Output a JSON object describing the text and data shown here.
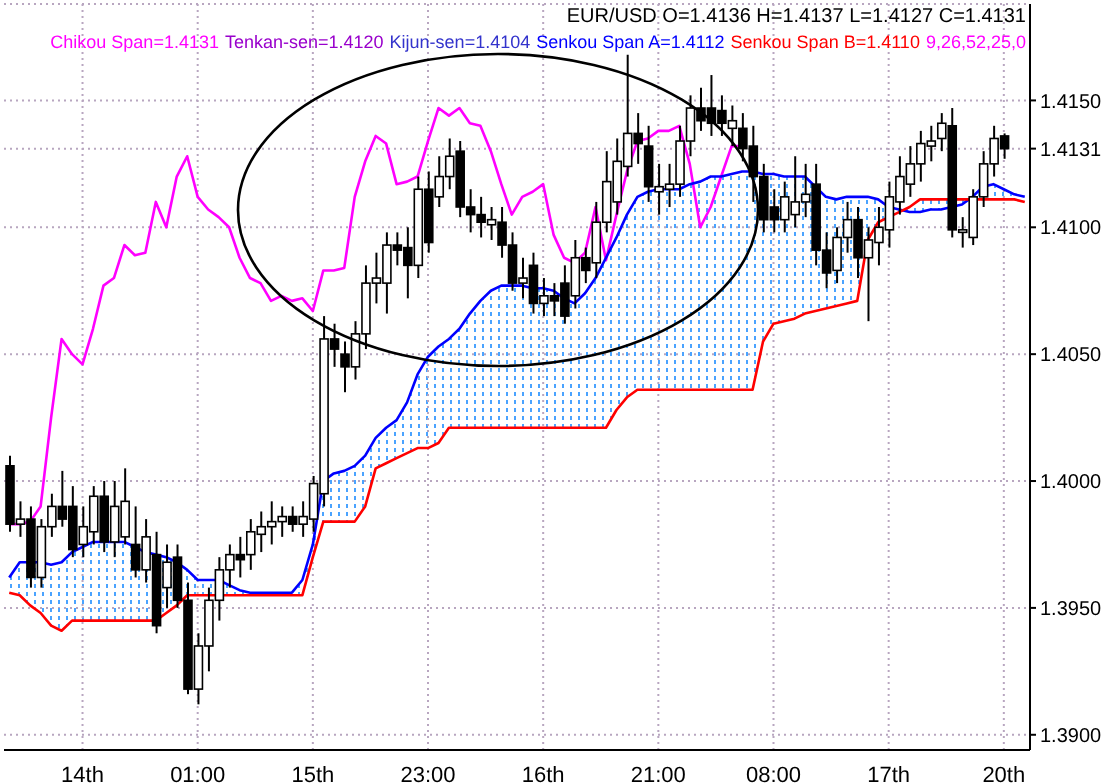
{
  "chart_data": {
    "type": "candlestick",
    "title": "EUR/USD O=1.4136 H=1.4137 L=1.4127 C=1.4131",
    "annotations": [
      "Chikou Span=1.4131",
      "Tenkan-sen=1.4120",
      "Kijun-sen=1.4104",
      "Senkou Span A=1.4112",
      "Senkou Span B=1.4110",
      "9,26,52,25,0"
    ],
    "categories": [
      null,
      null,
      null,
      null,
      null,
      null,
      null,
      "14th",
      null,
      null,
      null,
      null,
      null,
      null,
      null,
      null,
      null,
      null,
      "01:00",
      null,
      null,
      null,
      null,
      null,
      null,
      null,
      null,
      null,
      null,
      "15th",
      null,
      null,
      null,
      null,
      null,
      null,
      null,
      null,
      null,
      null,
      "23:00",
      null,
      null,
      null,
      null,
      null,
      null,
      null,
      null,
      null,
      null,
      "16th",
      null,
      null,
      null,
      null,
      null,
      null,
      null,
      null,
      null,
      null,
      "21:00",
      null,
      null,
      null,
      null,
      null,
      null,
      null,
      null,
      null,
      null,
      "08:00",
      null,
      null,
      null,
      null,
      null,
      null,
      null,
      null,
      null,
      null,
      "17th",
      null,
      null,
      null,
      null,
      null,
      null,
      null,
      null,
      null,
      null,
      "20th",
      null,
      null
    ],
    "ohlc": [
      [
        1.4006,
        1.401,
        1.398,
        1.3983
      ],
      [
        1.3983,
        1.3992,
        1.3978,
        1.3985
      ],
      [
        1.3985,
        1.399,
        1.3958,
        1.3962
      ],
      [
        1.3962,
        1.3985,
        1.3958,
        1.3982
      ],
      [
        1.3982,
        1.3995,
        1.3978,
        1.399
      ],
      [
        1.399,
        1.4004,
        1.3982,
        1.3985
      ],
      [
        1.399,
        1.3998,
        1.397,
        1.3973
      ],
      [
        1.3975,
        1.399,
        1.397,
        1.3982
      ],
      [
        1.398,
        1.3998,
        1.3975,
        1.3994
      ],
      [
        1.3994,
        1.4,
        1.3972,
        1.3976
      ],
      [
        1.3976,
        1.4,
        1.397,
        1.399
      ],
      [
        1.3978,
        1.4005,
        1.3975,
        1.3992
      ],
      [
        1.3975,
        1.399,
        1.3962,
        1.3965
      ],
      [
        1.3965,
        1.3985,
        1.396,
        1.3978
      ],
      [
        1.3971,
        1.398,
        1.394,
        1.3943
      ],
      [
        1.3958,
        1.3975,
        1.395,
        1.3968
      ],
      [
        1.397,
        1.3975,
        1.395,
        1.3953
      ],
      [
        1.3953,
        1.396,
        1.3916,
        1.3918
      ],
      [
        1.3918,
        1.394,
        1.3912,
        1.3935
      ],
      [
        1.3935,
        1.3958,
        1.3925,
        1.3953
      ],
      [
        1.3953,
        1.397,
        1.3945,
        1.3965
      ],
      [
        1.3965,
        1.3975,
        1.3958,
        1.3971
      ],
      [
        1.3971,
        1.3978,
        1.3962,
        1.3969
      ],
      [
        1.3971,
        1.3985,
        1.3965,
        1.398
      ],
      [
        1.3979,
        1.3988,
        1.3972,
        1.3982
      ],
      [
        1.3982,
        1.3992,
        1.3975,
        1.3984
      ],
      [
        1.3984,
        1.399,
        1.3978,
        1.3986
      ],
      [
        1.3986,
        1.399,
        1.398,
        1.3983
      ],
      [
        1.3983,
        1.3992,
        1.3978,
        1.3986
      ],
      [
        1.3985,
        1.4002,
        1.398,
        1.3999
      ],
      [
        1.3995,
        1.4065,
        1.399,
        1.4056
      ],
      [
        1.4056,
        1.4062,
        1.4045,
        1.4052
      ],
      [
        1.405,
        1.4055,
        1.4035,
        1.4045
      ],
      [
        1.4045,
        1.4063,
        1.404,
        1.4058
      ],
      [
        1.4058,
        1.4085,
        1.4052,
        1.4078
      ],
      [
        1.4078,
        1.409,
        1.407,
        1.408
      ],
      [
        1.4078,
        1.4098,
        1.4066,
        1.4093
      ],
      [
        1.4093,
        1.4098,
        1.4085,
        1.4091
      ],
      [
        1.4092,
        1.41,
        1.4072,
        1.4085
      ],
      [
        1.4085,
        1.412,
        1.408,
        1.4115
      ],
      [
        1.4115,
        1.4122,
        1.409,
        1.4094
      ],
      [
        1.4112,
        1.4128,
        1.4108,
        1.412
      ],
      [
        1.412,
        1.4135,
        1.4115,
        1.4128
      ],
      [
        1.413,
        1.4134,
        1.4104,
        1.4108
      ],
      [
        1.4108,
        1.4115,
        1.4098,
        1.4105
      ],
      [
        1.4105,
        1.4112,
        1.4096,
        1.4102
      ],
      [
        1.4101,
        1.4108,
        1.4095,
        1.4103
      ],
      [
        1.4102,
        1.4108,
        1.4088,
        1.4093
      ],
      [
        1.4093,
        1.4098,
        1.4075,
        1.4078
      ],
      [
        1.4078,
        1.4088,
        1.4072,
        1.408
      ],
      [
        1.4085,
        1.409,
        1.4066,
        1.407
      ],
      [
        1.407,
        1.408,
        1.4065,
        1.4073
      ],
      [
        1.4073,
        1.4078,
        1.4065,
        1.4071
      ],
      [
        1.4078,
        1.4085,
        1.4062,
        1.4065
      ],
      [
        1.4073,
        1.4095,
        1.4068,
        1.4088
      ],
      [
        1.4088,
        1.4092,
        1.4078,
        1.4083
      ],
      [
        1.4086,
        1.411,
        1.408,
        1.4102
      ],
      [
        1.4102,
        1.413,
        1.4098,
        1.4118
      ],
      [
        1.411,
        1.4135,
        1.4105,
        1.4126
      ],
      [
        1.4124,
        1.4168,
        1.412,
        1.4137
      ],
      [
        1.4137,
        1.4145,
        1.4125,
        1.4133
      ],
      [
        1.4132,
        1.414,
        1.411,
        1.4116
      ],
      [
        1.4114,
        1.4125,
        1.4105,
        1.4116
      ],
      [
        1.4115,
        1.4125,
        1.4108,
        1.4117
      ],
      [
        1.4117,
        1.414,
        1.4112,
        1.4134
      ],
      [
        1.4134,
        1.4152,
        1.4128,
        1.4147
      ],
      [
        1.4147,
        1.4155,
        1.4138,
        1.4142
      ],
      [
        1.4147,
        1.416,
        1.4136,
        1.4141
      ],
      [
        1.4146,
        1.4152,
        1.4136,
        1.4141
      ],
      [
        1.4139,
        1.4148,
        1.4132,
        1.4142
      ],
      [
        1.4139,
        1.4145,
        1.4126,
        1.4131
      ],
      [
        1.4132,
        1.414,
        1.411,
        1.412
      ],
      [
        1.412,
        1.4125,
        1.4098,
        1.4103
      ],
      [
        1.4108,
        1.4115,
        1.4098,
        1.4103
      ],
      [
        1.4103,
        1.4118,
        1.4098,
        1.4112
      ],
      [
        1.4105,
        1.4128,
        1.41,
        1.411
      ],
      [
        1.411,
        1.4125,
        1.4104,
        1.4113
      ],
      [
        1.4117,
        1.4125,
        1.4085,
        1.4091
      ],
      [
        1.4091,
        1.4098,
        1.4076,
        1.4082
      ],
      [
        1.4083,
        1.41,
        1.4078,
        1.4096
      ],
      [
        1.4096,
        1.411,
        1.409,
        1.4103
      ],
      [
        1.4103,
        1.4108,
        1.408,
        1.4088
      ],
      [
        1.4088,
        1.41,
        1.4063,
        1.4095
      ],
      [
        1.4094,
        1.4108,
        1.4085,
        1.41
      ],
      [
        1.4099,
        1.4118,
        1.4092,
        1.4112
      ],
      [
        1.411,
        1.4128,
        1.4105,
        1.412
      ],
      [
        1.4117,
        1.4132,
        1.4112,
        1.4125
      ],
      [
        1.4125,
        1.4138,
        1.4118,
        1.4133
      ],
      [
        1.4132,
        1.414,
        1.4126,
        1.4134
      ],
      [
        1.4135,
        1.4145,
        1.413,
        1.4141
      ],
      [
        1.414,
        1.4147,
        1.4096,
        1.4099
      ],
      [
        1.4098,
        1.4104,
        1.4092,
        1.4099
      ],
      [
        1.4096,
        1.4115,
        1.4093,
        1.4112
      ],
      [
        1.4112,
        1.413,
        1.4108,
        1.4125
      ],
      [
        1.4125,
        1.414,
        1.412,
        1.4135
      ],
      [
        1.4136,
        1.4137,
        1.4127,
        1.4131
      ],
      null,
      null
    ],
    "series": [
      {
        "type": "line",
        "color": "#ff00ff",
        "values": [
          1.3983,
          1.3983,
          1.3984,
          1.399,
          1.4025,
          1.4056,
          1.405,
          1.4046,
          1.406,
          1.4077,
          1.408,
          1.4093,
          1.4089,
          1.409,
          1.411,
          1.41,
          1.412,
          1.4128,
          1.4112,
          1.4107,
          1.4104,
          1.41,
          1.4088,
          1.408,
          1.4078,
          1.4071,
          1.4073,
          1.4071,
          1.4072,
          1.4067,
          1.4083,
          1.4083,
          1.4084,
          1.4112,
          1.4126,
          1.4136,
          1.4133,
          1.4117,
          1.4118,
          1.412,
          1.4134,
          1.4147,
          1.4144,
          1.4147,
          1.4141,
          1.414,
          1.413,
          1.4117,
          1.4105,
          1.4112,
          1.4114,
          1.4117,
          1.4097,
          1.4088,
          1.4086,
          1.409,
          1.4108,
          1.4087,
          1.4105,
          1.4122,
          1.4134,
          1.4135,
          1.4138,
          1.4138,
          1.414,
          1.4125,
          1.41,
          1.4108,
          1.412,
          1.4132,
          1.4132,
          null,
          null,
          null,
          null,
          null,
          null,
          null,
          null,
          null,
          null,
          null,
          null,
          null,
          null,
          null,
          null,
          null,
          null,
          null,
          null,
          null,
          null,
          null,
          null,
          null,
          null,
          null
        ]
      },
      {
        "type": "line",
        "color": "#0000ff",
        "lower": [
          1.3956,
          1.3955,
          1.3951,
          1.3948,
          1.3943,
          1.3941,
          1.3945,
          1.3945,
          1.3945,
          1.3945,
          1.3945,
          1.3945,
          1.3945,
          1.3945,
          1.3945,
          1.3948,
          1.3951,
          1.3955,
          1.3955,
          1.3955,
          1.3955,
          1.3955,
          1.3955,
          1.3955,
          1.3955,
          1.3955,
          1.3955,
          1.3955,
          1.3955,
          1.397,
          1.3984,
          1.3984,
          1.3984,
          1.3984,
          1.399,
          1.4005,
          1.4007,
          1.4009,
          1.4011,
          1.4013,
          1.4013,
          1.4015,
          1.4021,
          1.4021,
          1.4021,
          1.4021,
          1.4021,
          1.4021,
          1.4021,
          1.4021,
          1.4021,
          1.4021,
          1.4021,
          1.4021,
          1.4021,
          1.4021,
          1.4021,
          1.4021,
          1.4028,
          1.4033,
          1.4036,
          1.4036,
          1.4036,
          1.4036,
          1.4036,
          1.4036,
          1.4036,
          1.4036,
          1.4036,
          1.4036,
          1.4036,
          1.4036,
          1.4055,
          1.4062,
          1.4063,
          1.4064,
          1.4066,
          1.4067,
          1.4068,
          1.4069,
          1.407,
          1.4071,
          1.4095,
          1.4102,
          1.4104,
          1.4106,
          1.4108,
          1.4111,
          1.4111,
          1.4111,
          1.4111,
          1.4111,
          1.4111,
          1.4111,
          1.4111,
          1.4111,
          1.4111,
          1.411
        ],
        "upper": [
          1.3962,
          1.3968,
          1.3968,
          1.3968,
          1.3967,
          1.3968,
          1.3972,
          1.3974,
          1.3976,
          1.3976,
          1.3976,
          1.3976,
          1.3974,
          1.3972,
          1.3971,
          1.397,
          1.3968,
          1.3965,
          1.3961,
          1.3961,
          1.3961,
          1.3959,
          1.3957,
          1.3956,
          1.3956,
          1.3956,
          1.3956,
          1.3956,
          1.3961,
          1.3975,
          1.4,
          1.4003,
          1.4004,
          1.4006,
          1.401,
          1.4017,
          1.4021,
          1.4024,
          1.4031,
          1.4042,
          1.4049,
          1.4053,
          1.4056,
          1.406,
          1.4066,
          1.4071,
          1.4075,
          1.4077,
          1.4077,
          1.4077,
          1.4076,
          1.4076,
          1.4075,
          1.4072,
          1.407,
          1.4074,
          1.408,
          1.4088,
          1.4096,
          1.4105,
          1.4112,
          1.4114,
          1.4115,
          1.4115,
          1.4115,
          1.4117,
          1.4118,
          1.412,
          1.412,
          1.4121,
          1.4122,
          1.4122,
          1.4121,
          1.4121,
          1.412,
          1.412,
          1.412,
          1.4116,
          1.4112,
          1.4111,
          1.4112,
          1.4112,
          1.4112,
          1.4111,
          1.4108,
          1.4107,
          1.4106,
          1.4106,
          1.4107,
          1.4107,
          1.4108,
          1.4109,
          1.4112,
          1.4116,
          1.4117,
          1.4115,
          1.4113,
          1.4112
        ],
        "values": [
          1.3962,
          1.3968,
          1.3968,
          1.3968,
          1.3967,
          1.3968,
          1.3972,
          1.3974,
          1.3976,
          1.3976,
          1.3976,
          1.3976,
          1.3974,
          1.3972,
          1.3971,
          1.397,
          1.3968,
          1.3965,
          1.3961,
          1.3961,
          1.3961,
          1.3959,
          1.3957,
          1.3956,
          1.3956,
          1.3956,
          1.3956,
          1.3956,
          1.3961,
          1.3975,
          1.4,
          1.4003,
          1.4004,
          1.4006,
          1.401,
          1.4017,
          1.4021,
          1.4024,
          1.4031,
          1.4042,
          1.4049,
          1.4053,
          1.4056,
          1.406,
          1.4066,
          1.4071,
          1.4075,
          1.4077,
          1.4077,
          1.4077,
          1.4076,
          1.4076,
          1.4075,
          1.4072,
          1.407,
          1.4074,
          1.408,
          1.4088,
          1.4096,
          1.4105,
          1.4112,
          1.4114,
          1.4115,
          1.4115,
          1.4115,
          1.4117,
          1.4118,
          1.412,
          1.412,
          1.4121,
          1.4122,
          1.4122,
          1.4121,
          1.4121,
          1.412,
          1.412,
          1.412,
          1.4116,
          1.4112,
          1.4111,
          1.4112,
          1.4112,
          1.4112,
          1.4111,
          1.4108,
          1.4107,
          1.4106,
          1.4106,
          1.4107,
          1.4107,
          1.4108,
          1.4109,
          1.4112,
          1.4116,
          1.4117,
          1.4115,
          1.4113,
          1.4112
        ]
      },
      {
        "type": "line",
        "color": "#ff0000",
        "values": [
          1.3956,
          1.3955,
          1.3951,
          1.3948,
          1.3943,
          1.3941,
          1.3945,
          1.3945,
          1.3945,
          1.3945,
          1.3945,
          1.3945,
          1.3945,
          1.3945,
          1.3945,
          1.3948,
          1.3951,
          1.3955,
          1.3955,
          1.3955,
          1.3955,
          1.3955,
          1.3955,
          1.3955,
          1.3955,
          1.3955,
          1.3955,
          1.3955,
          1.3955,
          1.397,
          1.3984,
          1.3984,
          1.3984,
          1.3984,
          1.399,
          1.4005,
          1.4007,
          1.4009,
          1.4011,
          1.4013,
          1.4013,
          1.4015,
          1.4021,
          1.4021,
          1.4021,
          1.4021,
          1.4021,
          1.4021,
          1.4021,
          1.4021,
          1.4021,
          1.4021,
          1.4021,
          1.4021,
          1.4021,
          1.4021,
          1.4021,
          1.4021,
          1.4028,
          1.4033,
          1.4036,
          1.4036,
          1.4036,
          1.4036,
          1.4036,
          1.4036,
          1.4036,
          1.4036,
          1.4036,
          1.4036,
          1.4036,
          1.4036,
          1.4055,
          1.4062,
          1.4063,
          1.4064,
          1.4066,
          1.4067,
          1.4068,
          1.4069,
          1.407,
          1.4071,
          1.4095,
          1.4102,
          1.4104,
          1.4106,
          1.4108,
          1.4111,
          1.4111,
          1.4111,
          1.4111,
          1.4111,
          1.4111,
          1.4111,
          1.4111,
          1.4111,
          1.4111,
          1.411
        ]
      }
    ],
    "ylim": [
      1.3894,
      1.4188
    ],
    "yticks": [
      {
        "value": 1.39,
        "label": "1.3900"
      },
      {
        "value": 1.395,
        "label": "1.3950"
      },
      {
        "value": 1.4,
        "label": "1.4000"
      },
      {
        "value": 1.405,
        "label": "1.4050"
      },
      {
        "value": 1.41,
        "label": "1.4100"
      },
      1.4131,
      {
        "value": 1.415,
        "label": "1.4150"
      }
    ],
    "grid": true
  }
}
